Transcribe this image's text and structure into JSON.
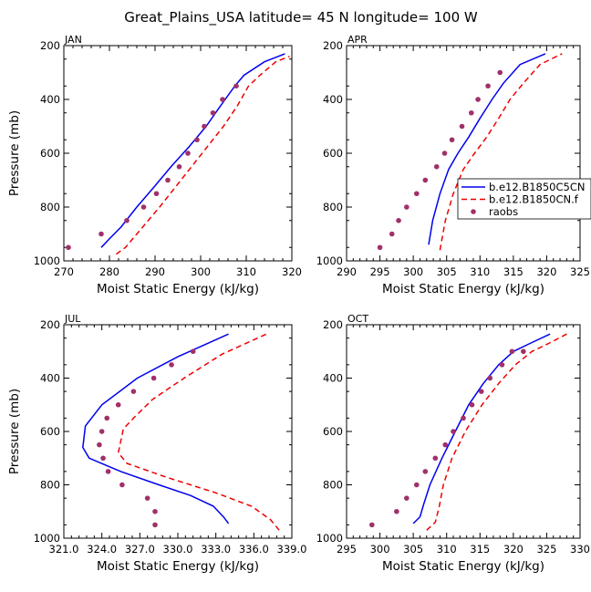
{
  "figure_title": "Great_Plains_USA   latitude= 45 N longitude= 100 W",
  "colors": {
    "model_1": "#0000ee",
    "model_2": "#ee0000",
    "raobs": "#a0306a"
  },
  "chart_data": [
    {
      "type": "line",
      "panel_label": "JAN",
      "xlabel": "Moist Static Energy (kJ/kg)",
      "ylabel": "Pressure (mb)",
      "xlim": [
        270,
        320
      ],
      "ylim": [
        1000,
        200
      ],
      "xticks": [
        270,
        280,
        290,
        300,
        310,
        320
      ],
      "xtick_labels": [
        "270",
        "280",
        "290",
        "300",
        "310",
        "320"
      ],
      "yticks": [
        200,
        400,
        600,
        800,
        1000
      ],
      "ytick_labels": [
        "200",
        "400",
        "600",
        "800",
        "1000"
      ],
      "series": [
        {
          "name": "b.e12.B1850C5CN",
          "style": "solid",
          "color": "#0000ee",
          "x": [
            278.2,
            279.6,
            282.5,
            286.0,
            289.8,
            293.5,
            297.5,
            301.2,
            304.3,
            307.5,
            309.5,
            314.0,
            318.5
          ],
          "y": [
            950,
            925,
            875,
            800,
            725,
            650,
            575,
            500,
            425,
            350,
            310,
            260,
            230
          ]
        },
        {
          "name": "b.e12.B1850CN.f",
          "style": "dashed",
          "color": "#ee0000",
          "x": [
            281.5,
            283.5,
            287.0,
            291.0,
            294.5,
            298.0,
            301.5,
            305.0,
            308.0,
            310.5,
            313.0,
            316.5,
            319.5
          ],
          "y": [
            975,
            950,
            880,
            800,
            725,
            650,
            575,
            500,
            425,
            350,
            310,
            260,
            240
          ]
        }
      ],
      "scatter": {
        "name": "raobs",
        "color": "#a0306a",
        "x": [
          271.0,
          278.2,
          283.8,
          287.5,
          290.3,
          292.8,
          295.3,
          297.2,
          299.2,
          300.8,
          302.7,
          304.8,
          307.8
        ],
        "y": [
          950,
          900,
          850,
          800,
          750,
          700,
          650,
          600,
          550,
          500,
          450,
          400,
          350
        ]
      }
    },
    {
      "type": "line",
      "panel_label": "APR",
      "xlabel": "Moist Static Energy (kJ/kg)",
      "ylabel": "",
      "xlim": [
        290,
        325
      ],
      "ylim": [
        1000,
        200
      ],
      "xticks": [
        290,
        295,
        300,
        305,
        310,
        315,
        320,
        325
      ],
      "xtick_labels": [
        "290",
        "295",
        "300",
        "305",
        "310",
        "315",
        "320",
        "325"
      ],
      "yticks": [
        200,
        400,
        600,
        800,
        1000
      ],
      "ytick_labels": [
        "200",
        "400",
        "600",
        "800",
        "1000"
      ],
      "series": [
        {
          "name": "b.e12.B1850C5CN",
          "style": "solid",
          "color": "#0000ee",
          "x": [
            302.3,
            302.9,
            304.0,
            305.3,
            306.7,
            308.3,
            310.0,
            311.8,
            313.5,
            316.0,
            319.8
          ],
          "y": [
            940,
            850,
            750,
            660,
            600,
            540,
            470,
            400,
            340,
            270,
            230
          ]
        },
        {
          "name": "b.e12.B1850CN.f",
          "style": "dashed",
          "color": "#ee0000",
          "x": [
            304.0,
            304.8,
            306.0,
            307.5,
            309.2,
            311.0,
            312.8,
            314.5,
            316.5,
            319.0,
            322.3
          ],
          "y": [
            960,
            850,
            750,
            660,
            600,
            540,
            470,
            400,
            340,
            270,
            230
          ]
        }
      ],
      "scatter": {
        "name": "raobs",
        "color": "#a0306a",
        "x": [
          295.0,
          296.8,
          297.8,
          299.0,
          300.5,
          301.8,
          303.5,
          304.7,
          305.8,
          307.3,
          308.7,
          309.7,
          311.2,
          313.0
        ],
        "y": [
          950,
          900,
          850,
          800,
          750,
          700,
          650,
          600,
          550,
          500,
          450,
          400,
          350,
          300
        ]
      },
      "legend": {
        "position": "right",
        "entries": [
          "b.e12.B1850C5CN",
          "b.e12.B1850CN.f",
          "raobs"
        ]
      }
    },
    {
      "type": "line",
      "panel_label": "JUL",
      "xlabel": "Moist Static Energy (kJ/kg)",
      "ylabel": "Pressure (mb)",
      "xlim": [
        321,
        339
      ],
      "ylim": [
        1000,
        200
      ],
      "xticks": [
        321,
        324,
        327,
        330,
        333,
        336,
        339
      ],
      "xtick_labels": [
        "321.0",
        "324.0",
        "327.0",
        "330.0",
        "333.0",
        "336.0",
        "339.0"
      ],
      "yticks": [
        200,
        400,
        600,
        800,
        1000
      ],
      "ytick_labels": [
        "200",
        "400",
        "600",
        "800",
        "1000"
      ],
      "series": [
        {
          "name": "b.e12.B1850C5CN",
          "style": "solid",
          "color": "#0000ee",
          "x": [
            334.0,
            333.6,
            332.8,
            331.0,
            328.5,
            325.5,
            323.0,
            322.5,
            322.7,
            324.0,
            326.8,
            330.0,
            334.0
          ],
          "y": [
            945,
            920,
            880,
            840,
            800,
            750,
            700,
            660,
            580,
            500,
            400,
            320,
            235
          ]
        },
        {
          "name": "b.e12.B1850CN.f",
          "style": "dashed",
          "color": "#ee0000",
          "x": [
            338.0,
            337.3,
            335.8,
            333.0,
            329.0,
            326.0,
            325.3,
            325.7,
            326.5,
            328.0,
            330.5,
            333.5,
            337.0
          ],
          "y": [
            970,
            930,
            880,
            830,
            770,
            720,
            680,
            590,
            550,
            480,
            400,
            310,
            235
          ]
        }
      ],
      "scatter": {
        "name": "raobs",
        "color": "#a0306a",
        "x": [
          328.2,
          328.2,
          327.6,
          325.6,
          324.5,
          324.1,
          323.8,
          324.0,
          324.4,
          325.3,
          326.5,
          328.1,
          329.5,
          331.2
        ],
        "y": [
          950,
          900,
          850,
          800,
          750,
          700,
          650,
          600,
          550,
          500,
          450,
          400,
          350,
          300
        ]
      }
    },
    {
      "type": "line",
      "panel_label": "OCT",
      "xlabel": "Moist Static Energy (kJ/kg)",
      "ylabel": "",
      "xlim": [
        295,
        330
      ],
      "ylim": [
        1000,
        200
      ],
      "xticks": [
        295,
        300,
        305,
        310,
        315,
        320,
        325,
        330
      ],
      "xtick_labels": [
        "295",
        "300",
        "305",
        "310",
        "315",
        "320",
        "325",
        "330"
      ],
      "yticks": [
        200,
        400,
        600,
        800,
        1000
      ],
      "ytick_labels": [
        "200",
        "400",
        "600",
        "800",
        "1000"
      ],
      "series": [
        {
          "name": "b.e12.B1850C5CN",
          "style": "solid",
          "color": "#0000ee",
          "x": [
            305.0,
            306.0,
            306.6,
            307.5,
            309.3,
            311.3,
            313.3,
            315.5,
            317.8,
            320.0,
            322.5,
            325.5
          ],
          "y": [
            945,
            920,
            870,
            800,
            700,
            600,
            500,
            420,
            350,
            300,
            270,
            235
          ]
        },
        {
          "name": "b.e12.B1850CN.f",
          "style": "dashed",
          "color": "#ee0000",
          "x": [
            307.0,
            308.3,
            308.9,
            309.5,
            310.8,
            312.8,
            315.3,
            317.8,
            320.3,
            322.8,
            325.3,
            328.0
          ],
          "y": [
            970,
            940,
            880,
            800,
            700,
            600,
            500,
            420,
            350,
            300,
            270,
            235
          ]
        }
      ],
      "scatter": {
        "name": "raobs",
        "color": "#a0306a",
        "x": [
          298.8,
          302.5,
          304.0,
          305.5,
          306.8,
          308.3,
          309.8,
          311.0,
          312.5,
          313.8,
          315.2,
          316.5,
          318.3,
          319.8,
          321.5
        ],
        "y": [
          950,
          900,
          850,
          800,
          750,
          700,
          650,
          600,
          550,
          500,
          450,
          400,
          350,
          300,
          300
        ]
      }
    }
  ]
}
